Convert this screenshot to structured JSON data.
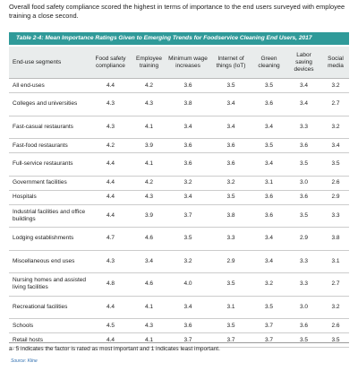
{
  "intro": "Overall food safety compliance scored the highest in terms of importance to the end users surveyed with employee training a close second.",
  "table": {
    "caption": "Table 2-4: Mean Importance Ratings Given to Emerging Trends for Foodservice Cleaning End Users, 2017",
    "headers": [
      "End-use segments",
      "Food safety compliance",
      "Employee training",
      "Minimum wage increases",
      "Internet of things (IoT)",
      "Green cleaning",
      "Labor saving devices",
      "Social media"
    ],
    "rows": [
      [
        "All end-uses",
        "4.4",
        "4.2",
        "3.6",
        "3.5",
        "3.5",
        "3.4",
        "3.2"
      ],
      [
        "Colleges and universities",
        "4.3",
        "4.3",
        "3.8",
        "3.4",
        "3.6",
        "3.4",
        "2.7"
      ],
      [
        "Fast-casual restaurants",
        "4.3",
        "4.1",
        "3.4",
        "3.4",
        "3.4",
        "3.3",
        "3.2"
      ],
      [
        "Fast-food restaurants",
        "4.2",
        "3.9",
        "3.6",
        "3.6",
        "3.5",
        "3.6",
        "3.4"
      ],
      [
        "Full-service restaurants",
        "4.4",
        "4.1",
        "3.6",
        "3.6",
        "3.4",
        "3.5",
        "3.5"
      ],
      [
        "Government facilities",
        "4.4",
        "4.2",
        "3.2",
        "3.2",
        "3.1",
        "3.0",
        "2.6"
      ],
      [
        "Hospitals",
        "4.4",
        "4.3",
        "3.4",
        "3.5",
        "3.6",
        "3.6",
        "2.9"
      ],
      [
        "Industrial facilities and office buildings",
        "4.4",
        "3.9",
        "3.7",
        "3.8",
        "3.6",
        "3.5",
        "3.3"
      ],
      [
        "Lodging establishments",
        "4.7",
        "4.6",
        "3.5",
        "3.3",
        "3.4",
        "2.9",
        "3.8"
      ],
      [
        "Miscellaneous end uses",
        "4.3",
        "3.4",
        "3.2",
        "2.9",
        "3.4",
        "3.3",
        "3.1"
      ],
      [
        "Nursing homes and assisted living facilities",
        "4.8",
        "4.6",
        "4.0",
        "3.5",
        "3.2",
        "3.3",
        "2.7"
      ],
      [
        "Recreational facilities",
        "4.4",
        "4.1",
        "3.4",
        "3.1",
        "3.5",
        "3.0",
        "3.2"
      ],
      [
        "Schools",
        "4.5",
        "4.3",
        "3.6",
        "3.5",
        "3.7",
        "3.6",
        "2.6"
      ],
      [
        "Retail hosts",
        "4.4",
        "4.1",
        "3.7",
        "3.7",
        "3.7",
        "3.5",
        "3.5"
      ]
    ],
    "footnote": "a- 5 indicates the factor is rated as most important and 1 indicates least important.",
    "source": "Source: Kline"
  }
}
